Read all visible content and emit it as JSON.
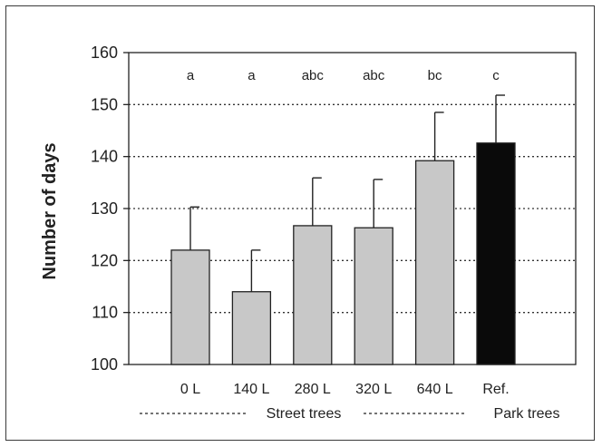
{
  "chart_data": {
    "type": "bar",
    "title": "",
    "xlabel": "",
    "ylabel": "Number of days",
    "ylim": [
      100,
      160
    ],
    "yticks": [
      100,
      110,
      120,
      130,
      140,
      150,
      160
    ],
    "grid": "horizontal dotted",
    "categories": [
      "0 L",
      "140 L",
      "280 L",
      "320 L",
      "640 L",
      "Ref."
    ],
    "values": [
      122,
      114,
      126.7,
      126.3,
      139.2,
      142.6
    ],
    "error_upper": [
      130.3,
      122,
      135.9,
      135.6,
      148.5,
      151.8
    ],
    "significance": [
      "a",
      "a",
      "abc",
      "abc",
      "bc",
      "c"
    ],
    "bar_colors": [
      "#c8c8c8",
      "#c8c8c8",
      "#c8c8c8",
      "#c8c8c8",
      "#c8c8c8",
      "#0a0a0a"
    ],
    "groups": [
      {
        "label": "Street trees",
        "categories": [
          "0 L",
          "140 L",
          "280 L",
          "320 L",
          "640 L"
        ]
      },
      {
        "label": "Park trees",
        "categories": [
          "Ref."
        ]
      }
    ]
  }
}
